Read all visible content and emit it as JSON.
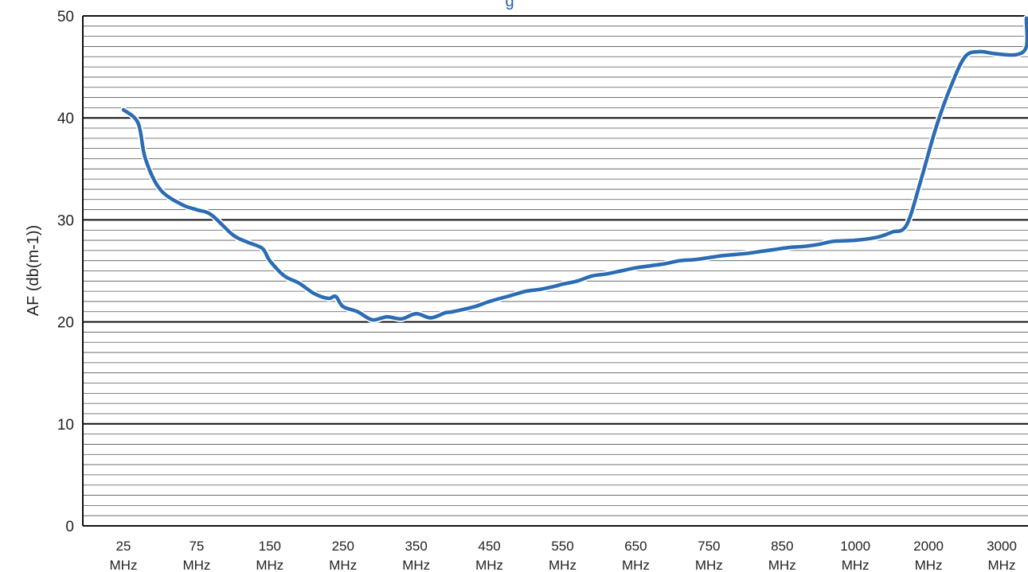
{
  "chart_data": {
    "type": "line",
    "title": "g",
    "ylabel": "AF (db(m-1))",
    "xlabel": "",
    "ylim": [
      0,
      50
    ],
    "y_major_ticks": [
      0,
      10,
      20,
      30,
      40,
      50
    ],
    "minor_grid_step": 1,
    "grid": true,
    "line_color": "#2b6cb3",
    "title_color": "#1f5fa8",
    "categories": [
      [
        "25",
        "MHz"
      ],
      [
        "75",
        "MHz"
      ],
      [
        "150",
        "MHz"
      ],
      [
        "250",
        "MHz"
      ],
      [
        "350",
        "MHz"
      ],
      [
        "450",
        "MHz"
      ],
      [
        "550",
        "MHz"
      ],
      [
        "650",
        "MHz"
      ],
      [
        "750",
        "MHz"
      ],
      [
        "850",
        "MHz"
      ],
      [
        "1000",
        "MHz"
      ],
      [
        "2000",
        "MHz"
      ],
      [
        "3000",
        "MHz"
      ]
    ],
    "series": [
      {
        "name": "",
        "x": [
          0.0,
          0.2,
          0.3,
          0.5,
          0.8,
          1.0,
          1.2,
          1.5,
          1.7,
          1.9,
          2.0,
          2.2,
          2.4,
          2.6,
          2.8,
          2.9,
          3.0,
          3.2,
          3.4,
          3.6,
          3.8,
          4.0,
          4.2,
          4.4,
          4.5,
          4.8,
          5.0,
          5.3,
          5.5,
          5.7,
          5.9,
          6.0,
          6.2,
          6.4,
          6.6,
          6.8,
          7.0,
          7.2,
          7.4,
          7.6,
          7.8,
          8.0,
          8.2,
          8.5,
          8.7,
          8.9,
          9.1,
          9.3,
          9.5,
          9.7,
          10.0,
          10.3,
          10.5,
          10.7,
          10.9,
          11.1,
          11.3,
          11.5,
          11.7,
          11.9,
          12.2,
          12.4,
          12.6,
          12.8,
          13.0
        ],
        "y": [
          40.8,
          39.5,
          36.0,
          33.0,
          31.5,
          31.0,
          30.5,
          28.5,
          27.8,
          27.2,
          26.0,
          24.5,
          23.8,
          22.8,
          22.3,
          22.5,
          21.5,
          21.0,
          20.2,
          20.5,
          20.3,
          20.8,
          20.4,
          20.9,
          21.0,
          21.5,
          22.0,
          22.6,
          23.0,
          23.2,
          23.5,
          23.7,
          24.0,
          24.5,
          24.7,
          25.0,
          25.3,
          25.5,
          25.7,
          26.0,
          26.1,
          26.3,
          26.5,
          26.7,
          26.9,
          27.1,
          27.3,
          27.4,
          27.6,
          27.9,
          28.0,
          28.3,
          28.8,
          29.5,
          34.0,
          39.0,
          43.0,
          46.0,
          46.5,
          46.3,
          46.2,
          47.0,
          49.5,
          49.7,
          49.3
        ]
      }
    ]
  }
}
